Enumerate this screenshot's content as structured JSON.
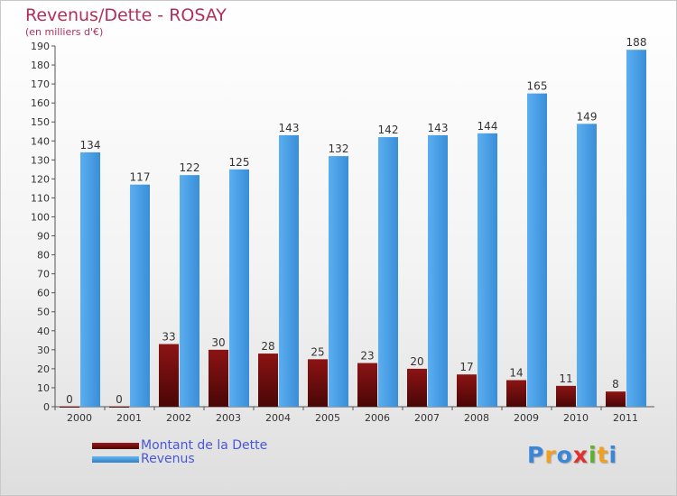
{
  "chart_data": {
    "type": "bar",
    "title": "Revenus/Dette - ROSAY",
    "subtitle": "(en milliers d'€)",
    "categories": [
      "2000",
      "2001",
      "2002",
      "2003",
      "2004",
      "2005",
      "2006",
      "2007",
      "2008",
      "2009",
      "2010",
      "2011"
    ],
    "series": [
      {
        "name": "Montant de la Dette",
        "color": "#7a0c0c",
        "values": [
          0,
          0,
          33,
          30,
          28,
          25,
          23,
          20,
          17,
          14,
          11,
          8
        ]
      },
      {
        "name": "Revenus",
        "color": "#4aa0e6",
        "values": [
          134,
          117,
          122,
          125,
          143,
          132,
          142,
          143,
          144,
          165,
          149,
          188
        ]
      }
    ],
    "ylim": [
      0,
      190
    ],
    "yticks": [
      0,
      10,
      20,
      30,
      40,
      50,
      60,
      70,
      80,
      90,
      100,
      110,
      120,
      130,
      140,
      150,
      160,
      170,
      180,
      190
    ],
    "grid": false,
    "legend_position": "bottom-left"
  },
  "logo": {
    "letters": [
      "P",
      "r",
      "o",
      "x",
      "i",
      "t",
      "i"
    ],
    "colors": [
      "#3a86d8",
      "#f0a020",
      "#3a86d8",
      "#e03030",
      "#60b030",
      "#f0a020",
      "#3a86d8"
    ]
  }
}
